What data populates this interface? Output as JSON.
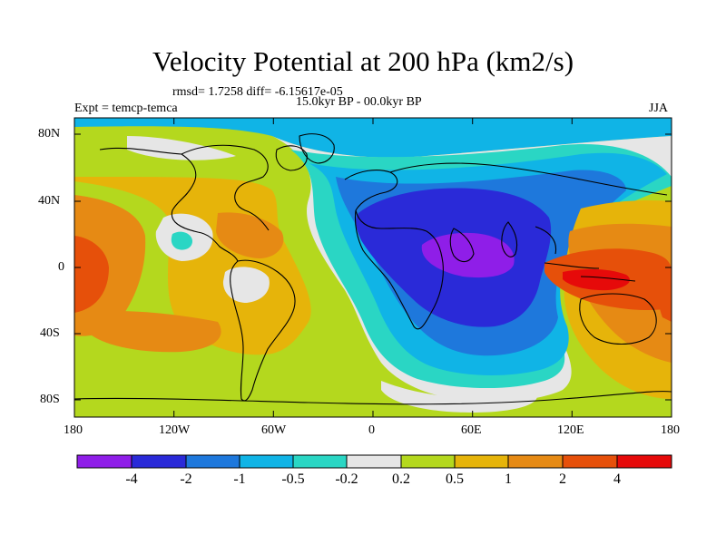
{
  "title": "Velocity Potential at 200 hPa (km2/s)",
  "stats_line": "rmsd= 1.7258 diff= -6.15617e-05",
  "expt_label": "Expt = temcp-temca",
  "period_label": "15.0kyr BP - 00.0kyr BP",
  "season_label": "JJA",
  "lat_ticks": [
    "80N",
    "40N",
    "0",
    "40S",
    "80S"
  ],
  "lon_ticks": [
    "180",
    "120W",
    "60W",
    "0",
    "60E",
    "120E",
    "180"
  ],
  "colorbar": {
    "labels": [
      "-4",
      "-2",
      "-1",
      "-0.5",
      "-0.2",
      "0.2",
      "0.5",
      "1",
      "2",
      "4"
    ],
    "colors": [
      "#8f1ee8",
      "#2a2ad8",
      "#1e78dc",
      "#10b4e6",
      "#2ad6c4",
      "#e6e6e6",
      "#b4d81e",
      "#e6b40a",
      "#e68a14",
      "#e6500a",
      "#e60a0a"
    ]
  },
  "map_colors": {
    "c1": "#8f1ee8",
    "c2": "#2a2ad8",
    "c3": "#1e78dc",
    "c4": "#10b4e6",
    "c5": "#2ad6c4",
    "c6": "#e6e6e6",
    "c7": "#b4d81e",
    "c8": "#e6b40a",
    "c9": "#e68a14",
    "c10": "#e6500a",
    "c11": "#e60a0a"
  }
}
